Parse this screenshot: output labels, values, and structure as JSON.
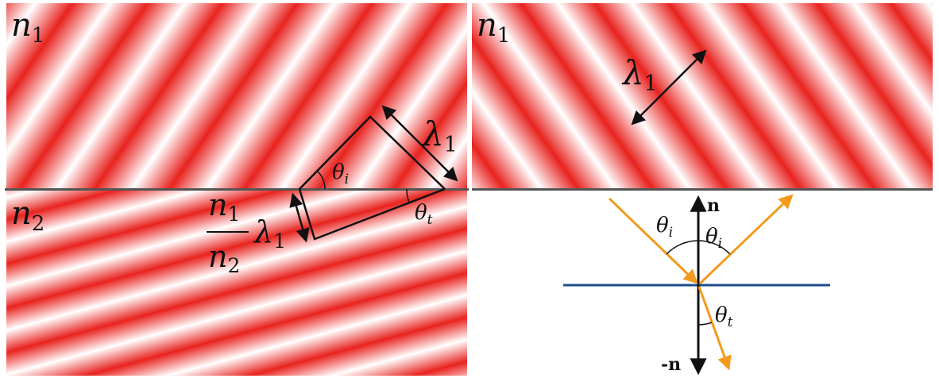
{
  "colors": {
    "wave_peak": "#e8231f",
    "wave_trough": "#ffffff",
    "interface": "#555555",
    "mirror": "#1f4e8c",
    "ray": "#f39a1e",
    "ink": "#111111"
  },
  "left_panel": {
    "medium_top": {
      "symbol": "n",
      "sub": "1"
    },
    "medium_bottom": {
      "symbol": "n",
      "sub": "2"
    },
    "wavelength_top": {
      "symbol": "λ",
      "sub": "1"
    },
    "wavelength_bottom": {
      "num": {
        "symbol": "n",
        "sub": "1"
      },
      "den": {
        "symbol": "n",
        "sub": "2"
      },
      "lambda": {
        "symbol": "λ",
        "sub": "1"
      }
    },
    "angle_incident": {
      "symbol": "θ",
      "sub": "i"
    },
    "angle_transmitted": {
      "symbol": "θ",
      "sub": "t"
    }
  },
  "right_panel": {
    "medium_top": {
      "symbol": "n",
      "sub": "1"
    },
    "wavelength": {
      "symbol": "λ",
      "sub": "1"
    },
    "normal_up": "n",
    "normal_down": "-n",
    "angle_incident": {
      "symbol": "θ",
      "sub": "i"
    },
    "angle_reflected": {
      "symbol": "θ",
      "sub": "i"
    },
    "angle_transmitted": {
      "symbol": "θ",
      "sub": "t"
    }
  }
}
